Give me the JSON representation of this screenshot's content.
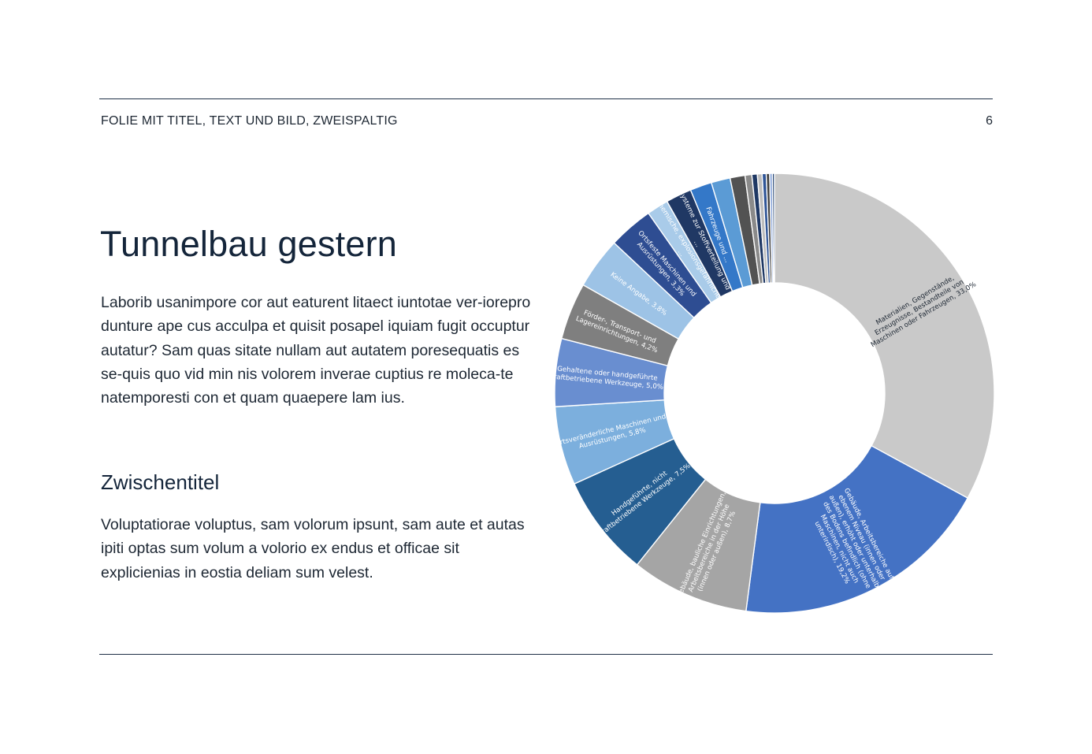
{
  "header": {
    "label": "FOLIE MIT TITEL, TEXT UND BILD, ZWEISPALTIG",
    "page_number": "6"
  },
  "content": {
    "title": "Tunnelbau gestern",
    "paragraph_1": "Laborib usanimpore cor aut eaturent litaect iuntotae ver-iorepro dunture ape cus acculpa et quisit posapel iquiam fugit occuptur autatur? Sam quas sitate nullam aut autatem poresequatis es se-quis quo vid min nis volorem inverae cuptius re moleca-te natemporesti con et quam quaepere lam ius.",
    "subtitle": "Zwischentitel",
    "paragraph_2": "Voluptatiorae voluptus, sam volorum ipsunt, sam aute et autas ipiti optas sum volum a volorio ex endus et officae sit explicienias in eostia deliam sum velest."
  },
  "chart_data": {
    "type": "pie",
    "subtype": "donut",
    "slices": [
      {
        "label": "Materialien, Gegenstände, Erzeugnisse, Bestandteile von Maschinen oder Fahrzeugen, 33,0%",
        "value": 33.0,
        "color": "#c9c9c9",
        "label_color": "dark"
      },
      {
        "label": "Gebäude, Arbeitsbereiche auf ebenem Niveau (innen oder außen), erhöht oder unterhalb des Bodens befindlich (ohne Maschinen, nicht auch unterirdisch), 19,2%",
        "value": 19.2,
        "color": "#4472c4"
      },
      {
        "label": "Gebäude, bauliche Einrichtungen, Arbeitsbereiche in der Höhe (innen oder außen), 8,7%",
        "value": 8.7,
        "color": "#a5a5a5"
      },
      {
        "label": "Handgeführte, nicht kraftbetriebene Werkzeuge, 7,5%",
        "value": 7.5,
        "color": "#255e91"
      },
      {
        "label": "Ortsveränderliche Maschinen und Ausrüstungen, 5,8%",
        "value": 5.8,
        "color": "#7cafdd"
      },
      {
        "label": "Gehaltene oder handgeführte kraftbetriebene Werkzeuge, 5,0%",
        "value": 5.0,
        "color": "#698ed0"
      },
      {
        "label": "Förder-, Transport- und Lagereinrichtungen, 4,2%",
        "value": 4.2,
        "color": "#7f7f7f"
      },
      {
        "label": "Keine Angabe, 3,8%",
        "value": 3.8,
        "color": "#9dc3e6"
      },
      {
        "label": "Ortsfeste Maschinen und Ausrüstungen, 3,3%",
        "value": 3.3,
        "color": "#2e4d92"
      },
      {
        "label": "Chemische, explosionsgefährliche ...",
        "value": 1.6,
        "color": "#a9cbe9"
      },
      {
        "label": "Systeme zur Stoffverteilung und ...",
        "value": 1.9,
        "color": "#203864"
      },
      {
        "label": "Fahrzeuge und ...",
        "value": 1.6,
        "color": "#3478c8"
      },
      {
        "label": "",
        "value": 1.4,
        "color": "#5b9bd5"
      },
      {
        "label": "",
        "value": 1.1,
        "color": "#525252"
      },
      {
        "label": "",
        "value": 0.5,
        "color": "#8a8a8a"
      },
      {
        "label": "",
        "value": 0.4,
        "color": "#1f3864"
      },
      {
        "label": "",
        "value": 0.35,
        "color": "#bdbdbd"
      },
      {
        "label": "",
        "value": 0.3,
        "color": "#2f5597"
      },
      {
        "label": "",
        "value": 0.25,
        "color": "#404040"
      },
      {
        "label": "",
        "value": 0.2,
        "color": "#8faadc"
      },
      {
        "label": "",
        "value": 0.15,
        "color": "#1a3b6a"
      }
    ],
    "start_angle_deg": 0,
    "direction": "clockwise"
  }
}
